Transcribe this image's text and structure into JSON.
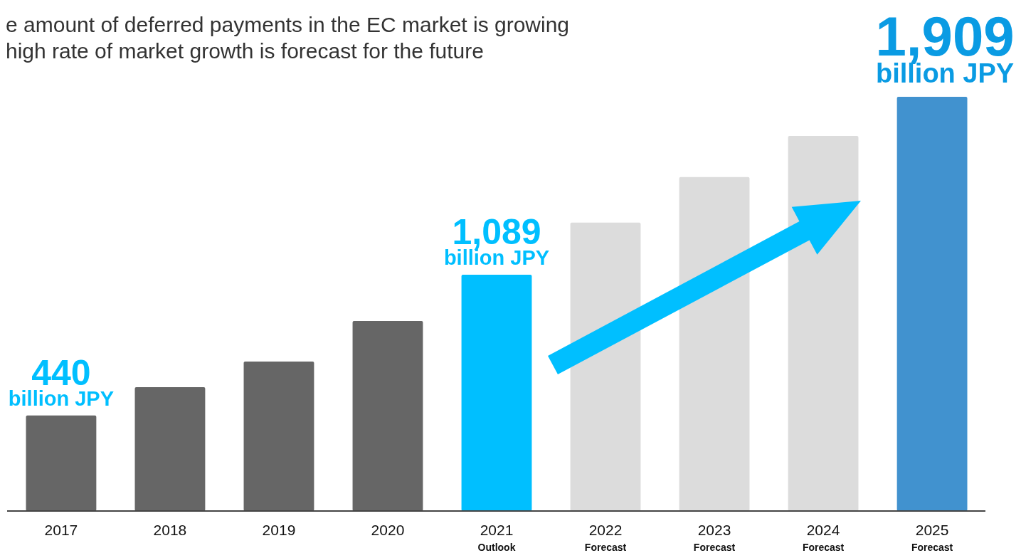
{
  "chart_data": {
    "type": "bar",
    "title": "e amount of deferred payments in the EC market is growing\nhigh rate of market growth is forecast for the future",
    "categories": [
      "2017",
      "2018",
      "2019",
      "2020",
      "2021\nOutlook",
      "2022\nForecast",
      "2023\nForecast",
      "2024\nForecast",
      "2025\nForecast"
    ],
    "values": [
      440,
      571,
      689,
      876,
      1089,
      1329,
      1539,
      1729,
      1909
    ],
    "colors": [
      "#666666",
      "#666666",
      "#666666",
      "#666666",
      "#00bfff",
      "#dcdcdc",
      "#dcdcdc",
      "#dcdcdc",
      "#4192cf"
    ],
    "value_labels": [
      "440",
      null,
      null,
      null,
      "1,089",
      null,
      null,
      null,
      "1,909"
    ],
    "annotations": [
      "billion JPY",
      "billion JPY",
      "billion JPY"
    ]
  }
}
